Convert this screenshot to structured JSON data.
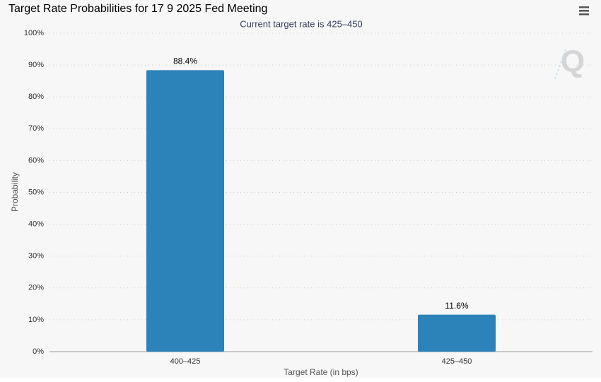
{
  "chart_data": {
    "type": "bar",
    "title": "Target Rate Probabilities for 17 9 2025 Fed Meeting",
    "subtitle": "Current target rate is 425–450",
    "x_label": "Target Rate (in bps)",
    "y_label": "Probability",
    "categories": [
      "400–425",
      "425–450"
    ],
    "values": [
      88.4,
      11.6
    ],
    "value_labels": [
      "88.4%",
      "11.6%"
    ],
    "color": "#2b83ba",
    "ylim": [
      0,
      100
    ],
    "yticks": [
      {
        "value": 0,
        "label": "0%"
      },
      {
        "value": 10,
        "label": "10%"
      },
      {
        "value": 20,
        "label": "20%"
      },
      {
        "value": 30,
        "label": "30%"
      },
      {
        "value": 40,
        "label": "40%"
      },
      {
        "value": 50,
        "label": "50%"
      },
      {
        "value": 60,
        "label": "60%"
      },
      {
        "value": 70,
        "label": "70%"
      },
      {
        "value": 80,
        "label": "80%"
      },
      {
        "value": 90,
        "label": "90%"
      },
      {
        "value": 100,
        "label": "100%"
      }
    ],
    "grid": true
  }
}
